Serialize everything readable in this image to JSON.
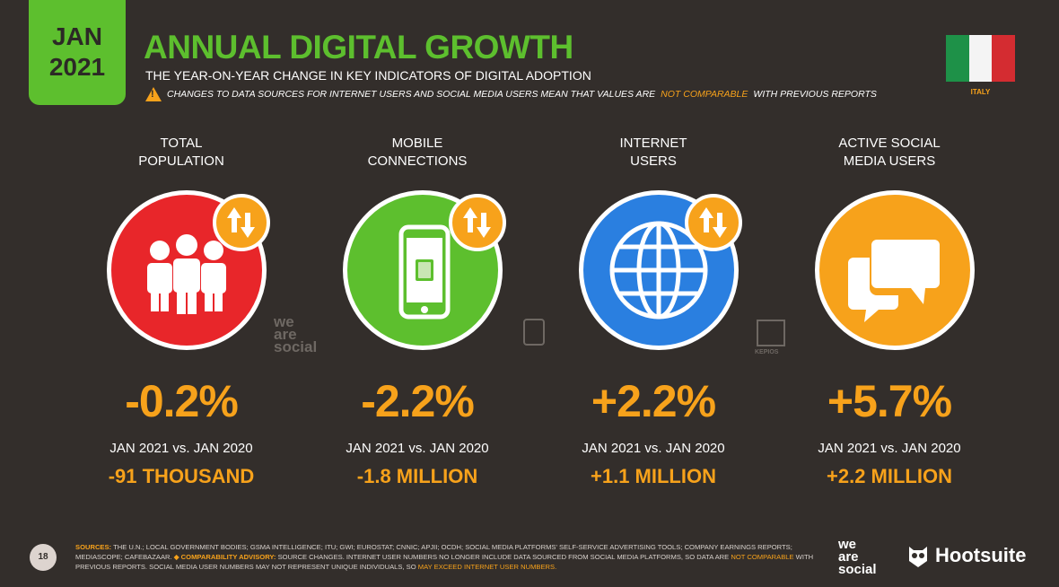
{
  "header": {
    "badge_month": "JAN",
    "badge_year": "2021",
    "title": "ANNUAL DIGITAL GROWTH",
    "subtitle": "THE YEAR-ON-YEAR CHANGE IN KEY INDICATORS OF DIGITAL ADOPTION",
    "warning_pre": "CHANGES TO DATA SOURCES FOR INTERNET USERS AND SOCIAL MEDIA USERS MEAN THAT VALUES ARE",
    "warning_hl": "NOT COMPARABLE",
    "warning_post": "WITH PREVIOUS REPORTS",
    "country": "ITALY"
  },
  "colors": {
    "background": "#332e2b",
    "green": "#5dbf2e",
    "orange": "#f7a21b",
    "red": "#e8262a",
    "blue": "#2a7fe0"
  },
  "metrics": [
    {
      "label_l1": "TOTAL",
      "label_l2": "POPULATION",
      "icon": "people-icon",
      "color": "#e8262a",
      "percent": "-0.2%",
      "comparison": "JAN 2021 vs. JAN 2020",
      "absolute": "-91 THOUSAND"
    },
    {
      "label_l1": "MOBILE",
      "label_l2": "CONNECTIONS",
      "icon": "mobile-phone-icon",
      "color": "#5dbf2e",
      "percent": "-2.2%",
      "comparison": "JAN 2021 vs. JAN 2020",
      "absolute": "-1.8 MILLION"
    },
    {
      "label_l1": "INTERNET",
      "label_l2": "USERS",
      "icon": "globe-icon",
      "color": "#2a7fe0",
      "percent": "+2.2%",
      "comparison": "JAN 2021 vs. JAN 2020",
      "absolute": "+1.1 MILLION"
    },
    {
      "label_l1": "ACTIVE SOCIAL",
      "label_l2": "MEDIA USERS",
      "icon": "chat-bubbles-icon",
      "color": "#f7a21b",
      "percent": "+5.7%",
      "comparison": "JAN 2021 vs. JAN 2020",
      "absolute": "+2.2 MILLION"
    }
  ],
  "watermarks": {
    "was_l1": "we",
    "was_l2": "are",
    "was_l3": "social",
    "kepios": "KEPIOS"
  },
  "footer": {
    "page": "18",
    "sources_label": "SOURCES:",
    "sources_text": "THE U.N.; LOCAL GOVERNMENT BODIES; GSMA INTELLIGENCE; ITU; GWI; EUROSTAT; CNNIC; APJII; OCDH; SOCIAL MEDIA PLATFORMS' SELF-SERVICE ADVERTISING TOOLS; COMPANY EARNINGS REPORTS; MEDIASCOPE; CAFEBAZAAR.",
    "advisory_label": "◆ COMPARABILITY ADVISORY:",
    "advisory_pre": "SOURCE CHANGES. INTERNET USER NUMBERS NO LONGER INCLUDE DATA SOURCED FROM SOCIAL MEDIA PLATFORMS, SO DATA ARE",
    "advisory_hl1": "NOT COMPARABLE",
    "advisory_mid": "WITH PREVIOUS REPORTS. SOCIAL MEDIA USER NUMBERS MAY NOT REPRESENT UNIQUE INDIVIDUALS, SO",
    "advisory_hl2": "MAY EXCEED INTERNET USER NUMBERS.",
    "was_logo_l1": "we",
    "was_logo_l2": "are",
    "was_logo_l3": "social",
    "hootsuite": "Hootsuite"
  }
}
